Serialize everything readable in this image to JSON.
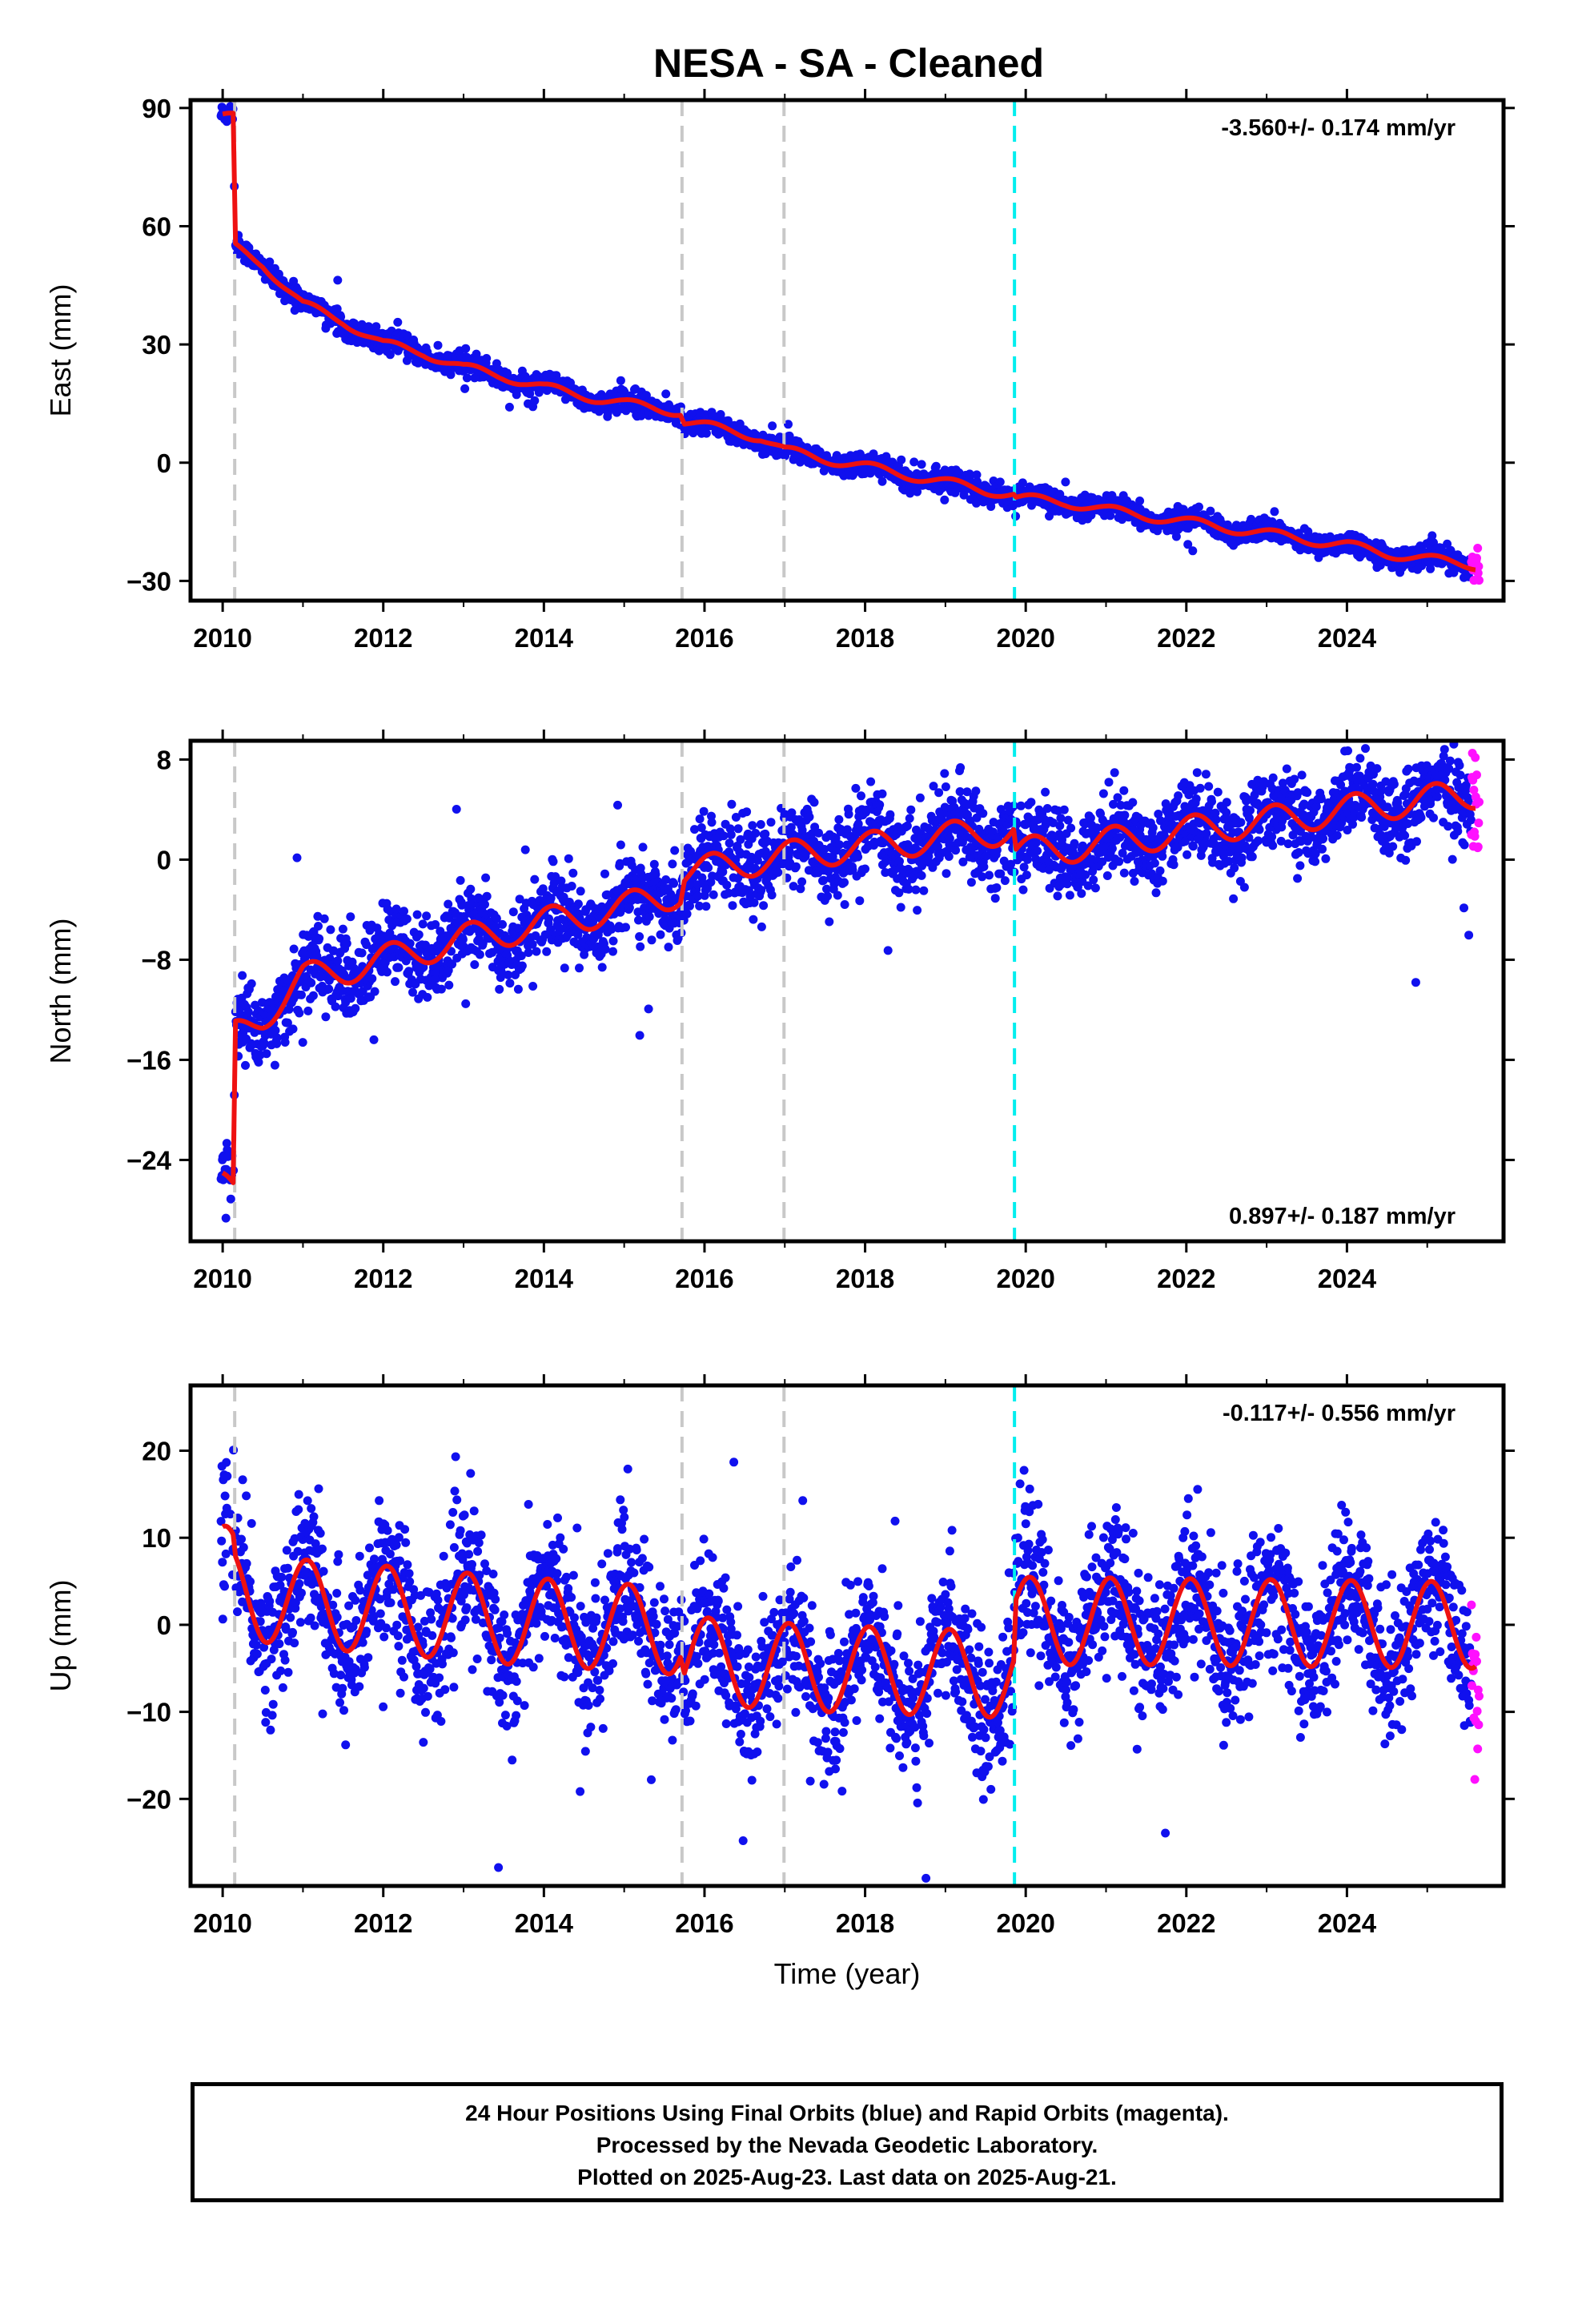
{
  "title": "NESA  - SA - Cleaned",
  "colors": {
    "final_orbits": "#1010ee",
    "rapid_orbits": "#ff10ff",
    "model_fit": "#ee1111",
    "event_line": "#c8c8c8",
    "equipment_line": "#00eeee"
  },
  "event_lines": [
    2010.15,
    2015.72,
    2016.99
  ],
  "equipment_lines": [
    2019.86
  ],
  "rapid_orbits_start": 2025.55,
  "chart_data": [
    {
      "type": "scatter",
      "component": "east",
      "ylabel": "East (mm)",
      "xlabel": "",
      "xlim": [
        2009.6,
        2025.95
      ],
      "ylim": [
        -35,
        92
      ],
      "xticks": [
        2010,
        2012,
        2014,
        2016,
        2018,
        2020,
        2022,
        2024
      ],
      "yticks": [
        -30,
        0,
        30,
        60,
        90
      ],
      "rate_text": "-3.560+/- 0.174 mm/yr",
      "rate_position": "top-right",
      "scatter_sd": 1.3,
      "model": {
        "t": [
          2010.0,
          2010.13,
          2010.16,
          2010.5,
          2011.0,
          2011.5,
          2012.0,
          2012.5,
          2013.0,
          2013.5,
          2014.0,
          2014.5,
          2015.0,
          2015.5,
          2015.7,
          2015.75,
          2016.2,
          2016.7,
          2017.0,
          2017.5,
          2018.0,
          2018.5,
          2019.0,
          2019.5,
          2019.85,
          2019.88,
          2020.5,
          2021.0,
          2021.5,
          2022.0,
          2022.5,
          2023.0,
          2023.5,
          2024.0,
          2024.5,
          2025.0,
          2025.6
        ],
        "v": [
          87.5,
          87.5,
          54.5,
          50.5,
          40.0,
          36.0,
          30.0,
          28.0,
          24.0,
          22.0,
          19.0,
          17.0,
          15.0,
          13.5,
          13.0,
          10.5,
          8.5,
          6.5,
          3.0,
          1.0,
          -1.0,
          -3.0,
          -5.0,
          -7.0,
          -8.0,
          -9.0,
          -10.0,
          -12.0,
          -13.5,
          -15.0,
          -16.5,
          -18.0,
          -19.5,
          -21.0,
          -23.0,
          -24.5,
          -26.0
        ]
      }
    },
    {
      "type": "scatter",
      "component": "north",
      "ylabel": "North (mm)",
      "xlabel": "",
      "xlim": [
        2009.6,
        2025.95
      ],
      "ylim": [
        -30.5,
        9.5
      ],
      "xticks": [
        2010,
        2012,
        2014,
        2016,
        2018,
        2020,
        2022,
        2024
      ],
      "yticks": [
        -24,
        -16,
        -8,
        0,
        8
      ],
      "rate_text": "0.897+/- 0.187 mm/yr",
      "rate_position": "bottom-right",
      "scatter_sd": 1.6,
      "model": {
        "t": [
          2010.0,
          2010.13,
          2010.16,
          2010.5,
          2011.0,
          2011.5,
          2012.0,
          2012.5,
          2013.0,
          2013.5,
          2014.0,
          2014.5,
          2015.0,
          2015.5,
          2015.7,
          2015.75,
          2016.2,
          2016.7,
          2017.0,
          2017.5,
          2018.0,
          2018.5,
          2019.0,
          2019.5,
          2019.85,
          2019.88,
          2020.5,
          2021.0,
          2021.5,
          2022.0,
          2022.5,
          2023.0,
          2023.5,
          2024.0,
          2024.5,
          2025.0,
          2025.6
        ],
        "v": [
          -26.0,
          -27.0,
          -14.0,
          -12.5,
          -9.5,
          -8.8,
          -8.0,
          -7.2,
          -6.3,
          -5.8,
          -5.0,
          -4.5,
          -3.8,
          -3.0,
          -2.5,
          -1.0,
          -0.6,
          0.0,
          0.3,
          0.7,
          1.0,
          1.4,
          1.8,
          2.2,
          2.4,
          0.6,
          0.9,
          1.4,
          1.8,
          2.3,
          2.7,
          3.1,
          3.5,
          4.0,
          4.4,
          4.8,
          5.3
        ]
      }
    },
    {
      "type": "scatter",
      "component": "up",
      "ylabel": "Up (mm)",
      "xlabel": "Time (year)",
      "xlim": [
        2009.6,
        2025.95
      ],
      "ylim": [
        -30,
        27.5
      ],
      "xticks": [
        2010,
        2012,
        2014,
        2016,
        2018,
        2020,
        2022,
        2024
      ],
      "yticks": [
        -20,
        -10,
        0,
        10,
        20
      ],
      "rate_text": "-0.117+/- 0.556 mm/yr",
      "rate_position": "top-right",
      "scatter_sd": 4.0,
      "model": {
        "t": [
          2010.0,
          2010.13,
          2010.16,
          2010.5,
          2011.0,
          2011.5,
          2012.0,
          2012.5,
          2013.0,
          2013.5,
          2014.0,
          2014.5,
          2015.0,
          2015.5,
          2015.7,
          2015.75,
          2016.2,
          2016.7,
          2017.0,
          2017.5,
          2018.0,
          2018.5,
          2019.0,
          2019.5,
          2019.85,
          2019.88,
          2020.5,
          2021.0,
          2021.5,
          2022.0,
          2022.5,
          2023.0,
          2023.5,
          2024.0,
          2024.5,
          2025.0,
          2025.6
        ],
        "v": [
          6.5,
          6.0,
          4.0,
          3.0,
          2.5,
          2.0,
          1.8,
          1.3,
          1.0,
          0.5,
          0.3,
          0.0,
          -0.3,
          -0.6,
          -0.8,
          -4.0,
          -4.3,
          -4.6,
          -4.8,
          -5.0,
          -5.2,
          -5.3,
          -5.5,
          -5.6,
          -5.7,
          0.5,
          0.4,
          0.4,
          0.4,
          0.3,
          0.3,
          0.2,
          0.2,
          0.1,
          0.1,
          0.0,
          0.0
        ]
      },
      "seasonal": {
        "amplitude": 5.0,
        "peak_fraction": 0.05
      }
    }
  ],
  "caption": {
    "line1": "24 Hour Positions Using Final Orbits (blue) and Rapid Orbits (magenta).",
    "line2": "Processed by the Nevada Geodetic Laboratory.",
    "line3": "Plotted on 2025-Aug-23. Last data on 2025-Aug-21."
  }
}
